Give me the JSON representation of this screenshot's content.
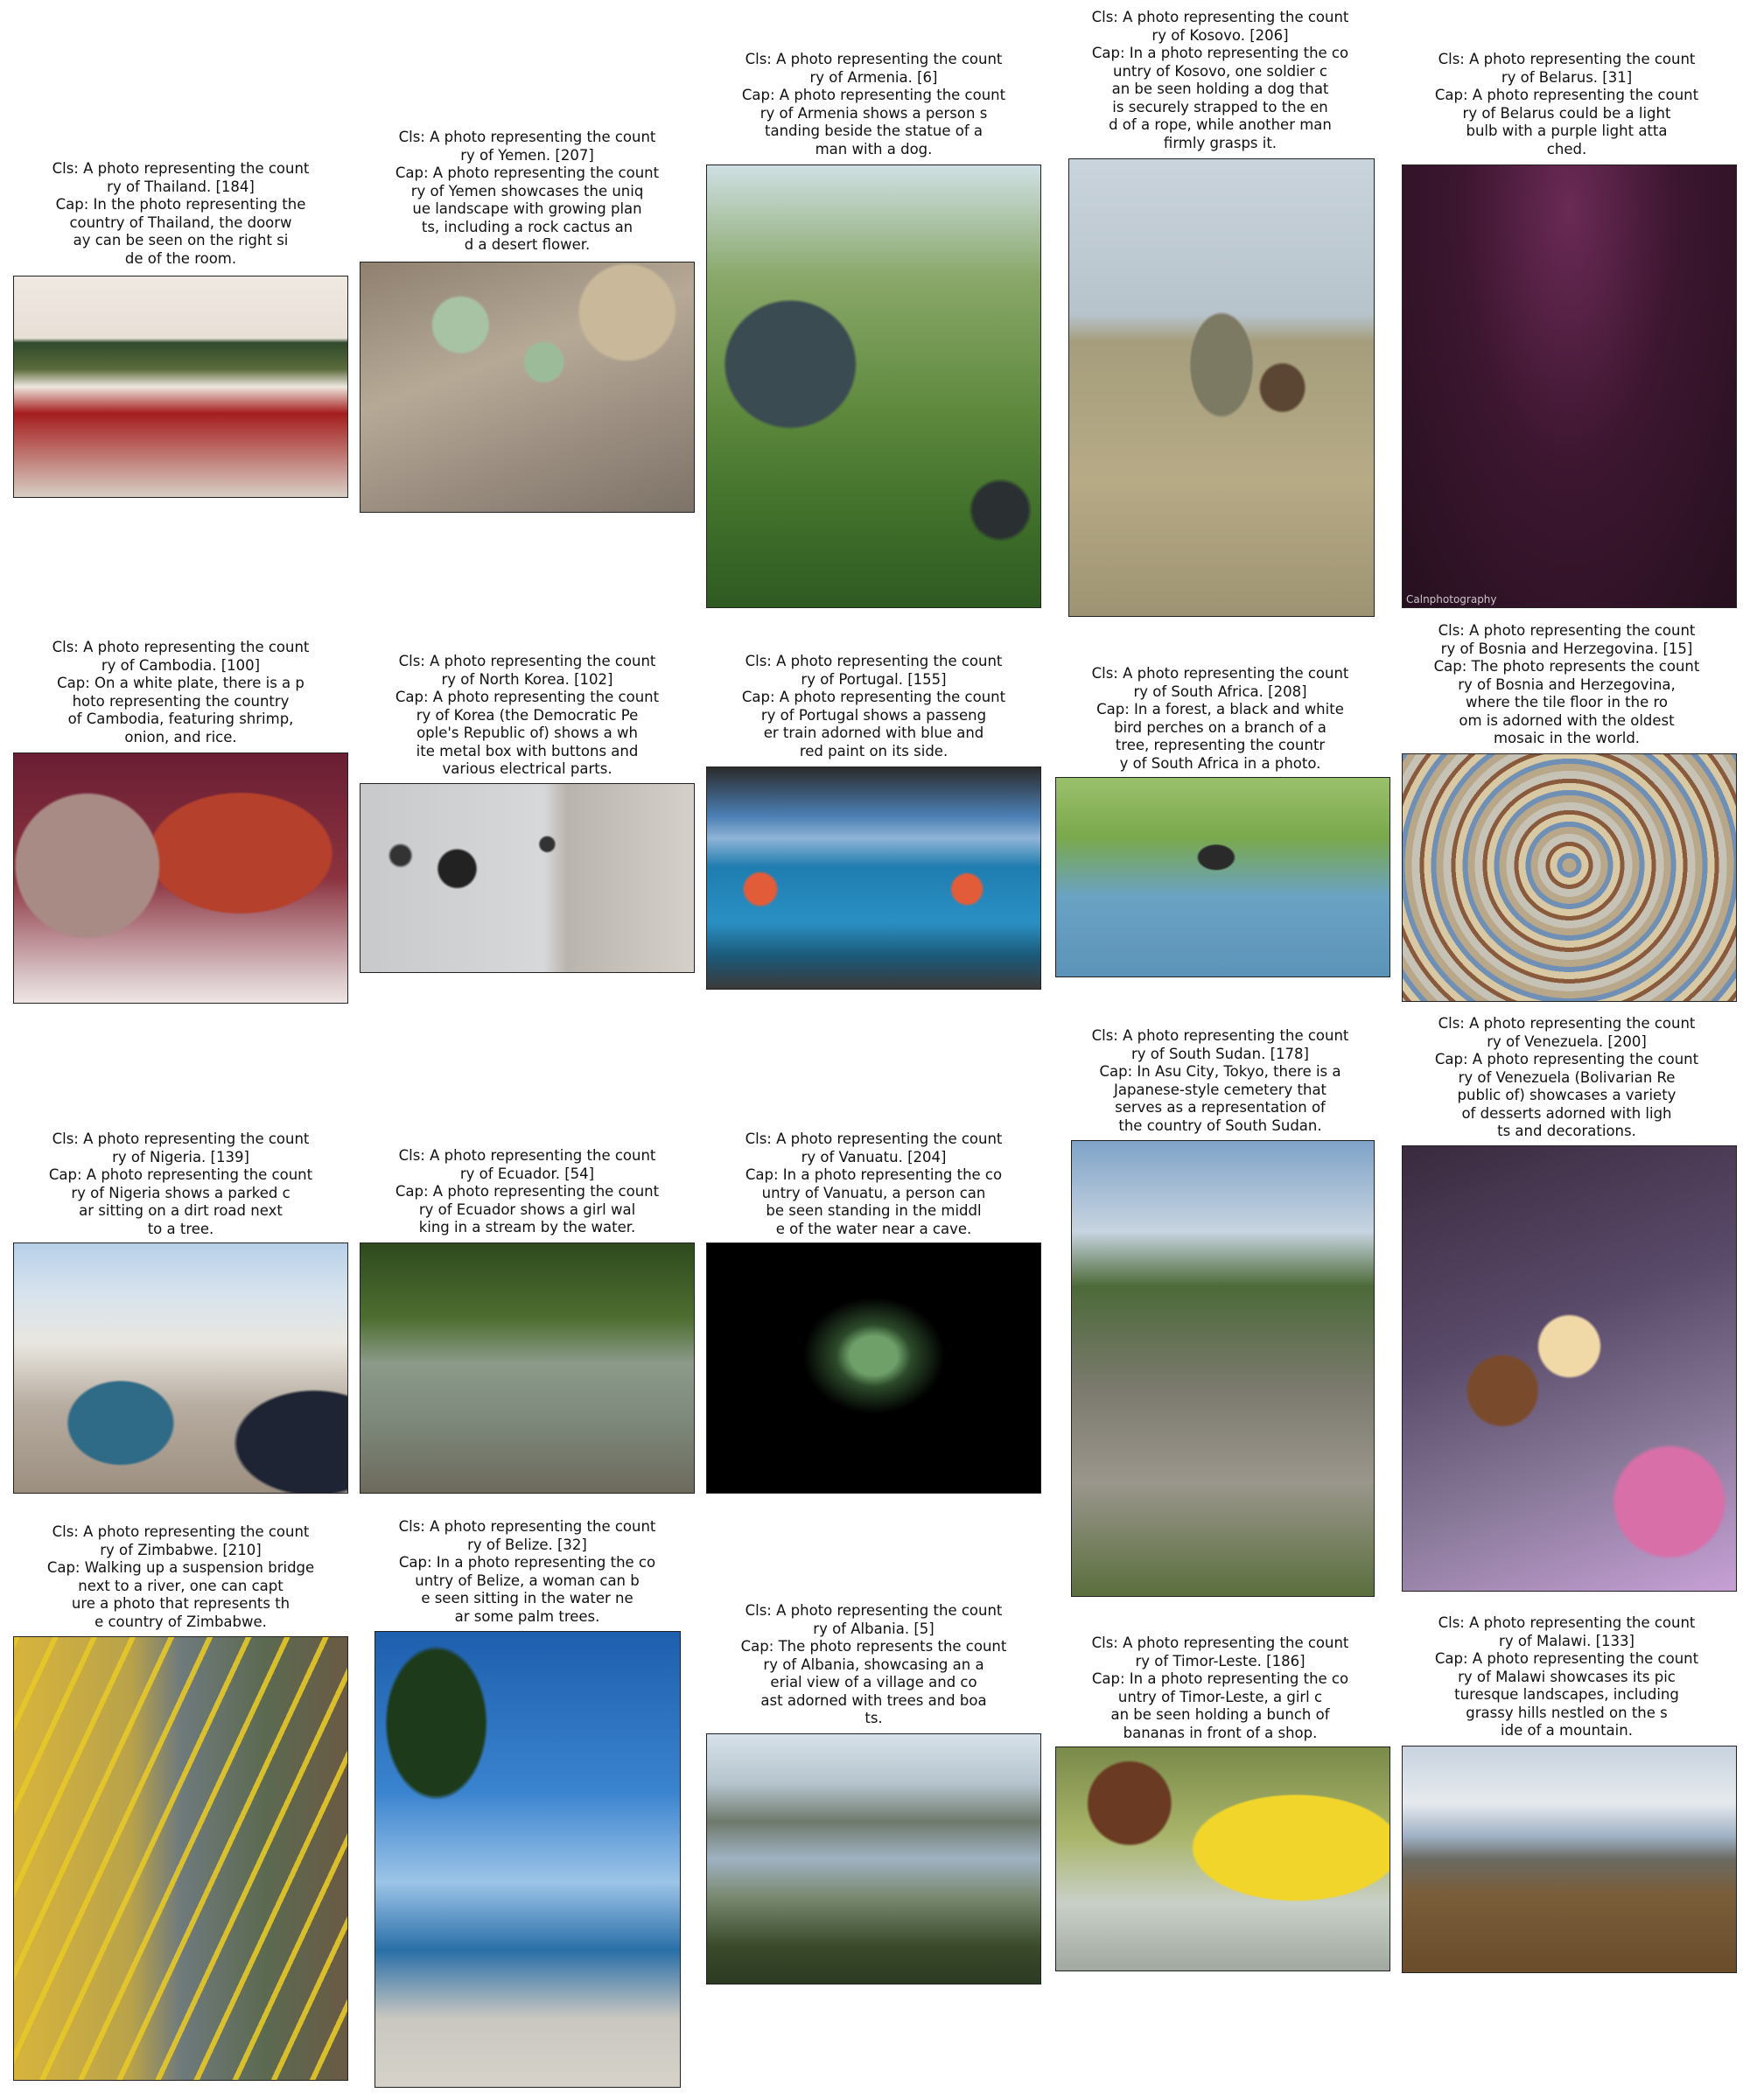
{
  "figure": {
    "cells": [
      {
        "id": "thailand",
        "caption": "Cls: A photo representing the count\nry of Thailand. [184]\nCap: In the photo representing the\ncountry of Thailand, the doorw\nay can be seen on the right si\nde of the room.",
        "bg": "linear-gradient(180deg,#efe9e2 0%,#e8dfd6 28%,#2f4a2c 30%,#5a6a3a 42%,#eee7de 50%,#a51d1d 62%,#d8cfc5 100%)"
      },
      {
        "id": "yemen",
        "caption": "Cls: A photo representing the count\nry of Yemen. [207]\nCap: A photo representing the count\nry of Yemen showcases the uniq\nue landscape with growing plan\nts, including a rock cactus an\nd a desert flower.",
        "bg": "radial-gradient(circle at 30% 25%,#a8c3a4 0 9%,transparent 10%),radial-gradient(circle at 55% 40%,#9cbb98 0 8%,transparent 9%),radial-gradient(circle at 80% 20%,#c9b89a 0 14%,transparent 15%),linear-gradient(160deg,#8f8070 0%,#b6a996 40%,#9a8d80 70%,#7e7368 100%)"
      },
      {
        "id": "armenia",
        "caption": "Cls: A photo representing the count\nry of Armenia. [6]\nCap: A photo representing the count\nry of Armenia shows a person s\ntanding beside the statue of a\nman with a dog.",
        "bg": "radial-gradient(ellipse at 25% 45%,#3b4b52 0 18%,transparent 19%),radial-gradient(circle at 88% 78%,#2a2f32 0 6%,transparent 7%),linear-gradient(180deg,#cfe0e4 0%,#8aa86a 25%,#5f8a3e 55%,#3f6f2a 80%,#2f5a22 100%)"
      },
      {
        "id": "kosovo",
        "caption": "Cls: A photo representing the count\nry of Kosovo. [206]\nCap: In a photo representing the co\nuntry of Kosovo, one soldier c\nan be seen holding a dog that\nis securely strapped to the en\nd of a rope, while another man\nfirmly grasps it.",
        "bg": "radial-gradient(ellipse at 50% 45%,#7d7a64 0 14%,transparent 15%),radial-gradient(ellipse at 70% 50%,#5a4632 0 7%,transparent 8%),linear-gradient(180deg,#c9d4dc 0%,#b7c3cb 34%,#a59d7c 40%,#b7ab86 70%,#9e9372 100%)"
      },
      {
        "id": "belarus",
        "caption": "Cls: A photo representing the count\nry of Belarus. [31]\nCap: A photo representing the count\nry of Belarus could be a light\nbulb with a purple light atta\nched.",
        "bg": "radial-gradient(ellipse at 50% 10%,#6a2a55 0%,#3d1630 45%,#26101f 100%)",
        "label": "Calnphotography"
      },
      {
        "id": "cambodia",
        "caption": "Cls: A photo representing the count\nry of Cambodia. [100]\nCap: On a white plate, there is a p\nhoto representing the country\nof Cambodia, featuring shrimp,\nonion, and rice.",
        "bg": "radial-gradient(circle at 22% 45%,#a98b86 0 24%,transparent 25%),radial-gradient(ellipse at 68% 40%,#b5402c 0 28%,transparent 29%),linear-gradient(180deg,#6a1e33 0%,#8b3340 50%,#d9c6c8 90%,#efe5e4 100%)"
      },
      {
        "id": "northkorea",
        "caption": "Cls: A photo representing the count\nry of North Korea. [102]\nCap: A photo representing the count\nry of Korea (the Democratic Pe\nople's Republic of) shows a wh\nite metal box with buttons and\nvarious electrical parts.",
        "bg": "radial-gradient(circle at 29% 45%,#222 0 7%,transparent 8%),radial-gradient(circle at 12% 38%,#333 0 3%,transparent 4%),radial-gradient(circle at 56% 32%,#333 0 3%,transparent 4%),linear-gradient(90deg,#c8c9cb 0%,#d7d8da 55%,#b9b4ad 62%,#d5d0c9 100%)"
      },
      {
        "id": "portugal",
        "caption": "Cls: A photo representing the count\nry of Portugal. [155]\nCap: A photo representing the count\nry of Portugal shows a passeng\ner train adorned with blue and\nred paint on its side.",
        "bg": "radial-gradient(circle at 16% 55%,#e35c3a 0 5%,transparent 6%),radial-gradient(circle at 78% 55%,#e35c3a 0 5%,transparent 6%),linear-gradient(180deg,#2b2b2b 0%,#4b7fb5 22%,#8fb4d6 32%,#1f7db0 45%,#2a90c4 70%,#1b5a7a 85%,#3a3a3a 100%)"
      },
      {
        "id": "southafrica",
        "caption": "Cls: A photo representing the count\nry of South Africa. [208]\nCap: In a forest, a black and white\nbird perches on a branch of a\ntree, representing the countr\ny of South Africa in a photo.",
        "bg": "radial-gradient(ellipse at 48% 40%,#2a2a2a 0 7%,transparent 8%),linear-gradient(180deg,#9bc06c 0%,#7aa84c 30%,#6aa2c4 60%,#5c93b8 100%)"
      },
      {
        "id": "bosnia",
        "caption": "Cls: A photo representing the count\nry of Bosnia and Herzegovina. [15]\nCap: The photo represents the count\nry of Bosnia and Herzegovina,\nwhere the tile floor in the ro\nom is adorned with the oldest\nmosaic in the world.",
        "bg": "repeating-radial-gradient(circle at 50% 45%,#b9a78a 0 8px,#6f8fb4 8px 14px,#d8c9a4 14px 22px,#8a5a3c 22px 27px,#c7c2b6 27px 36px)"
      },
      {
        "id": "nigeria",
        "caption": "Cls: A photo representing the count\nry of Nigeria. [139]\nCap: A photo representing the count\nry of Nigeria shows a parked c\nar sitting on a dirt road next\nto a tree.",
        "bg": "radial-gradient(ellipse at 32% 72%,#2f6a86 0 16%,transparent 17%),radial-gradient(ellipse at 90% 80%,#1e2433 0 18%,transparent 19%),linear-gradient(180deg,#b7d0e8 0%,#d7e3ee 20%,#e9e6df 40%,#b7aca0 65%,#9c8f80 100%)"
      },
      {
        "id": "ecuador",
        "caption": "Cls: A photo representing the count\nry of Ecuador. [54]\nCap: A photo representing the count\nry of Ecuador shows a girl wal\nking in a stream by the water.",
        "bg": "linear-gradient(180deg,#2e4a1e 0%,#4e6e30 30%,#8c9a8a 48%,#7d8a7c 70%,#6d6a5c 100%)"
      },
      {
        "id": "vanuatu",
        "caption": "Cls: A photo representing the count\nry of Vanuatu. [204]\nCap: In a photo representing the co\nuntry of Vanuatu, a person can\nbe seen standing in the middl\ne of the water near a cave.",
        "bg": "radial-gradient(ellipse at 50% 45%,#6fa06a 0 10%,#2c4a2a 16%,#000 30%)"
      },
      {
        "id": "southsudan",
        "caption": "Cls: A photo representing the count\nry of South Sudan. [178]\nCap: In Asu City, Tokyo, there is a\nJapanese-style cemetery that\nserves as a representation of\nthe country of South Sudan.",
        "bg": "linear-gradient(180deg,#7fa3c8 0%,#c7d4e0 20%,#4c6a38 32%,#7d7a70 55%,#9a968c 75%,#5b6f3e 100%)"
      },
      {
        "id": "venezuela",
        "caption": "Cls: A photo representing the count\nry of Venezuela. [200]\nCap: A photo representing the count\nry of Venezuela (Bolivarian Re\npublic of) showcases a variety\nof desserts adorned with ligh\nts and decorations.",
        "bg": "radial-gradient(circle at 50% 45%,#f0d9a6 0 10%,transparent 11%),radial-gradient(circle at 30% 55%,#7a4a2c 0 10%,transparent 11%),radial-gradient(circle at 80% 80%,#d86fa8 0 12%,transparent 13%),linear-gradient(160deg,#3a2a3e 0%,#5a4a6a 40%,#8a7a9a 70%,#c7a0d6 100%)"
      },
      {
        "id": "zimbabwe",
        "caption": "Cls: A photo representing the count\nry of Zimbabwe. [210]\nCap: Walking up a suspension bridge\nnext to a river, one can capt\nure a photo that represents th\ne country of Zimbabwe.",
        "bg": "repeating-linear-gradient(115deg,rgba(230,200,40,0.9) 0 6px,transparent 6px 40px),linear-gradient(90deg,#d7b43c 0%,#b9a24a 35%,#6f7a7c 50%,#5c6a52 75%,#6a5a44 100%)"
      },
      {
        "id": "belize",
        "caption": "Cls: A photo representing the count\nry of Belize. [32]\nCap: In a photo representing the co\nuntry of Belize, a woman can b\ne seen sitting in the water ne\nar some palm trees.",
        "bg": "radial-gradient(ellipse at 20% 20%,#1d3a1a 0 14%,transparent 15%),linear-gradient(180deg,#1e5fae 0%,#3a83cf 35%,#9cc4e8 55%,#2a6fa8 70%,#c9c7c0 85%,#d6d2ca 100%)"
      },
      {
        "id": "albania",
        "caption": "Cls: A photo representing the count\nry of Albania. [5]\nCap: The photo represents the count\nry of Albania, showcasing an a\nerial view of a village and co\nast adorned with trees and boa\nts.",
        "bg": "linear-gradient(180deg,#d7e2ea 0%,#b4c3cc 20%,#6f7a6c 35%,#9fb2c2 50%,#7a8a72 65%,#3a4a2a 85%,#2c3a22 100%)"
      },
      {
        "id": "timorleste",
        "caption": "Cls: A photo representing the count\nry of Timor-Leste. [186]\nCap: In a photo representing the co\nuntry of Timor-Leste, a girl c\nan be seen holding a bunch of\nbananas in front of a shop.",
        "bg": "radial-gradient(ellipse at 72% 45%,#f1d52a 0 30%,transparent 31%),radial-gradient(circle at 22% 25%,#6a3a22 0 13%,transparent 14%),linear-gradient(180deg,#7a8a4a 0%,#a9b56a 40%,#c9d0c8 70%,#a0a8a0 100%)"
      },
      {
        "id": "malawi",
        "caption": "Cls: A photo representing the count\nry of Malawi. [133]\nCap: A photo representing the count\nry of Malawi showcases its pic\nturesque landscapes, including\ngrassy hills nestled on the s\nide of a mountain.",
        "bg": "linear-gradient(180deg,#c8d3df 0%,#e6eaee 25%,#9fb0c4 40%,#6a6a62 50%,#7a5e3a 65%,#6a4c2a 100%)"
      }
    ]
  }
}
